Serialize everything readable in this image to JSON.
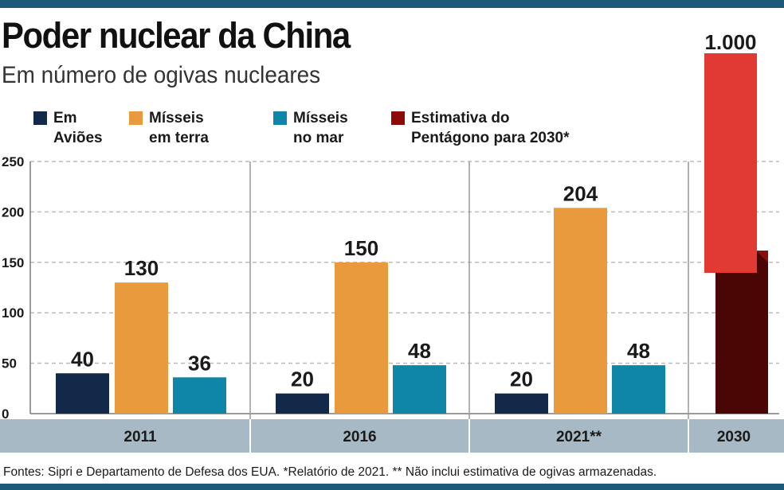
{
  "header": {
    "title": "Poder nuclear da China",
    "subtitle": "Em número de ogivas nucleares"
  },
  "legend": [
    {
      "line1": "Em",
      "line2": "Aviões",
      "color": "#12294a"
    },
    {
      "line1": "Mísseis",
      "line2": "em terra",
      "color": "#e89a3c"
    },
    {
      "line1": "Mísseis",
      "line2": "no mar",
      "color": "#0f86a8"
    },
    {
      "line1": "Estimativa do",
      "line2": "Pentágono para 2030*",
      "color": "#8c0a0a"
    }
  ],
  "chart_data": {
    "type": "bar",
    "title": "Poder nuclear da China",
    "subtitle": "Em número de ogivas nucleares",
    "ylim": [
      0,
      250
    ],
    "yticks": [
      0,
      50,
      100,
      150,
      200,
      250
    ],
    "grid": true,
    "legend_position": "top",
    "categories": [
      "2011",
      "2016",
      "2021**"
    ],
    "series": [
      {
        "name": "Em Aviões",
        "values": [
          40,
          20,
          20
        ],
        "labels": [
          "40",
          "20",
          "20"
        ],
        "color": "#12294a"
      },
      {
        "name": "Mísseis em terra",
        "values": [
          130,
          150,
          204
        ],
        "labels": [
          "130",
          "150",
          "204"
        ],
        "color": "#e89a3c"
      },
      {
        "name": "Mísseis no mar",
        "values": [
          36,
          48,
          48
        ],
        "labels": [
          "36",
          "48",
          "48"
        ],
        "color": "#0f86a8"
      }
    ],
    "projection": {
      "category": "2030",
      "name": "Estimativa do Pentágono para 2030*",
      "value": 1000,
      "label": "1.000",
      "color": "#4a0505",
      "highlight_color": "#e03a33"
    }
  },
  "footer": {
    "source": "Fontes: Sipri e Departamento de Defesa dos EUA. *Relatório de 2021. ** Não inclui estimativa de ogivas armazenadas."
  },
  "colors": {
    "frame": "#1d5a7a",
    "axis_band": "#a6b9c4",
    "grid": "#bbbbbb"
  }
}
